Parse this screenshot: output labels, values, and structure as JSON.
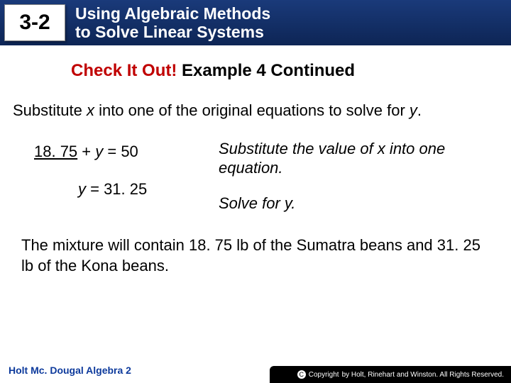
{
  "header": {
    "section_number": "3-2",
    "title_line1": "Using Algebraic Methods",
    "title_line2": "to Solve Linear Systems"
  },
  "example_heading": {
    "red_part": "Check It Out! ",
    "black_part": "Example 4 Continued"
  },
  "instruction": {
    "prefix": "Substitute ",
    "var1": "x",
    "mid": " into one of the original equations to solve for ",
    "var2": "y",
    "suffix": "."
  },
  "equations": {
    "eq1_left": "18. 75",
    "eq1_mid": " + ",
    "eq1_var": "y",
    "eq1_right": " = 50",
    "eq2_var": "y",
    "eq2_right": " = 31. 25"
  },
  "notes": {
    "note1": "Substitute the value of x into one equation.",
    "note2": "Solve for y."
  },
  "conclusion": "The mixture will contain 18. 75 lb of the Sumatra beans and 31. 25 lb of the Kona beans.",
  "footer": {
    "left": "Holt Mc. Dougal Algebra 2",
    "right": "by Holt, Rinehart and Winston. All Rights Reserved."
  },
  "colors": {
    "header_bg_top": "#1a3a7a",
    "header_bg_bottom": "#0d2555",
    "heading_red": "#c00000",
    "footer_text": "#0d3a9c",
    "footer_bar": "#000000",
    "page_bg": "#ffffff"
  },
  "typography": {
    "body_fontsize": 22,
    "heading_fontsize": 24,
    "header_title_fontsize": 23,
    "section_badge_fontsize": 30,
    "footer_left_fontsize": 14,
    "footer_right_fontsize": 10
  }
}
